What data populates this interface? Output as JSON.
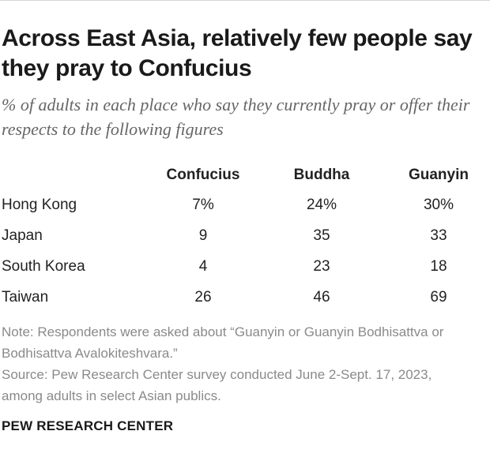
{
  "title": "Across East Asia, relatively few people say they pray to Confucius",
  "subtitle": "% of adults in each place who say they currently pray or offer their respects to the following figures",
  "chart_data": {
    "type": "table",
    "columns": [
      "Confucius",
      "Buddha",
      "Guanyin"
    ],
    "rows": [
      {
        "label": "Hong Kong",
        "values": [
          "7%",
          "24%",
          "30%"
        ]
      },
      {
        "label": "Japan",
        "values": [
          "9",
          "35",
          "33"
        ]
      },
      {
        "label": "South Korea",
        "values": [
          "4",
          "23",
          "18"
        ]
      },
      {
        "label": "Taiwan",
        "values": [
          "26",
          "46",
          "69"
        ]
      }
    ]
  },
  "note": "Note: Respondents were asked about “Guanyin or Guanyin Bodhisattva or Bodhisattva Avalokiteshvara.”",
  "source": "Source: Pew Research Center survey conducted June 2-Sept. 17, 2023, among adults in select Asian publics.",
  "brand": "PEW RESEARCH CENTER"
}
